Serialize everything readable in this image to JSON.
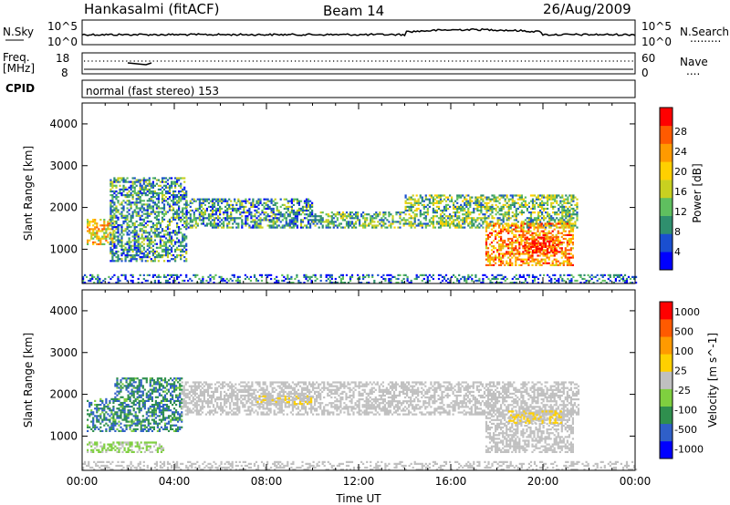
{
  "header": {
    "site": "Hankasalmi (fitACF)",
    "beam": "Beam 14",
    "date": "26/Aug/2009"
  },
  "noise_panel": {
    "left_label": "N.Sky",
    "left_ticks": [
      "10^5",
      "10^0"
    ],
    "right_ticks": [
      "10^5",
      "10^0"
    ],
    "right_label": "N.Search",
    "legend_dots": "........."
  },
  "freq_panel": {
    "left_label_top": "Freq.",
    "left_label_bottom": "[MHz]",
    "left_ticks": [
      "18",
      "8"
    ],
    "right_ticks": [
      "60",
      "0"
    ],
    "right_label": "Nave",
    "legend_dots": "....",
    "values_mhz": 12,
    "nave": 24
  },
  "cpid_panel": {
    "label": "CPID",
    "mode_text": "normal (fast stereo) 153"
  },
  "chart_data": [
    {
      "type": "heatmap",
      "parameter": "Power",
      "ylabel": "Slant Range [km]",
      "xlabel": "",
      "xlim": [
        "00:00",
        "00:00"
      ],
      "ylim": [
        180,
        4500
      ],
      "x_tick_labels": [],
      "y_tick_labels": [
        "4000",
        "3000",
        "2000",
        "1000"
      ],
      "colorbar": {
        "label": "Power [dB]",
        "range": [
          0,
          30
        ],
        "tick_labels": [
          "28",
          "24",
          "20",
          "16",
          "12",
          "8",
          "4"
        ],
        "colors": [
          "#0000ff",
          "#1a4fd0",
          "#2f8f6e",
          "#5fbf5f",
          "#c8d020",
          "#ffd000",
          "#ff9a00",
          "#ff5a00",
          "#ff0000"
        ]
      },
      "echo_regions": [
        {
          "start_h": 0.2,
          "end_h": 1.4,
          "r_min": 1100,
          "r_max": 1700,
          "power_db": 18
        },
        {
          "start_h": 1.2,
          "end_h": 4.5,
          "r_min": 700,
          "r_max": 2700,
          "power_db": 9
        },
        {
          "start_h": 4.5,
          "end_h": 10,
          "r_min": 1500,
          "r_max": 2200,
          "power_db": 9
        },
        {
          "start_h": 10,
          "end_h": 14,
          "r_min": 1500,
          "r_max": 1900,
          "power_db": 11
        },
        {
          "start_h": 14,
          "end_h": 21.5,
          "r_min": 1500,
          "r_max": 2300,
          "power_db": 12
        },
        {
          "start_h": 17.5,
          "end_h": 21.3,
          "r_min": 600,
          "r_max": 1600,
          "power_db": 22
        },
        {
          "start_h": 19.2,
          "end_h": 20.6,
          "r_min": 900,
          "r_max": 1300,
          "power_db": 27
        },
        {
          "start_h": 0,
          "end_h": 24,
          "r_min": 180,
          "r_max": 400,
          "power_db": 6
        }
      ]
    },
    {
      "type": "heatmap",
      "parameter": "Velocity",
      "ylabel": "Slant Range [km]",
      "xlabel": "Time UT",
      "xlim": [
        "00:00",
        "00:00"
      ],
      "ylim": [
        180,
        4500
      ],
      "x_tick_labels": [
        "00:00",
        "04:00",
        "08:00",
        "12:00",
        "16:00",
        "20:00",
        "00:00"
      ],
      "y_tick_labels": [
        "4000",
        "3000",
        "2000",
        "1000"
      ],
      "colorbar": {
        "label": "Velocity [m s^-1]",
        "range": [
          -1200,
          1200
        ],
        "tick_labels": [
          "1000",
          "500",
          "100",
          "25",
          "-25",
          "-100",
          "-500",
          "-1000"
        ],
        "colors": [
          "#0000ff",
          "#2f5fc8",
          "#2f8f4e",
          "#7fcf3f",
          "#c0c0c0",
          "#ffd000",
          "#ff9a00",
          "#ff5a00",
          "#ff0000"
        ]
      },
      "echo_regions": [
        {
          "start_h": 0.2,
          "end_h": 1.4,
          "r_min": 1100,
          "r_max": 1900,
          "velocity": -600
        },
        {
          "start_h": 1.4,
          "end_h": 4.3,
          "r_min": 1100,
          "r_max": 2400,
          "velocity": -600
        },
        {
          "start_h": 0.2,
          "end_h": 3.5,
          "r_min": 600,
          "r_max": 850,
          "velocity": -150
        },
        {
          "start_h": 4.3,
          "end_h": 21.5,
          "r_min": 1500,
          "r_max": 2300,
          "velocity": 0
        },
        {
          "start_h": 7.5,
          "end_h": 10,
          "r_min": 1750,
          "r_max": 1950,
          "velocity": 120
        },
        {
          "start_h": 17.5,
          "end_h": 21.3,
          "r_min": 600,
          "r_max": 1600,
          "velocity": 0
        },
        {
          "start_h": 18.5,
          "end_h": 20.8,
          "r_min": 1300,
          "r_max": 1600,
          "velocity": 150
        },
        {
          "start_h": 0,
          "end_h": 24,
          "r_min": 180,
          "r_max": 400,
          "velocity": -30
        }
      ]
    }
  ]
}
